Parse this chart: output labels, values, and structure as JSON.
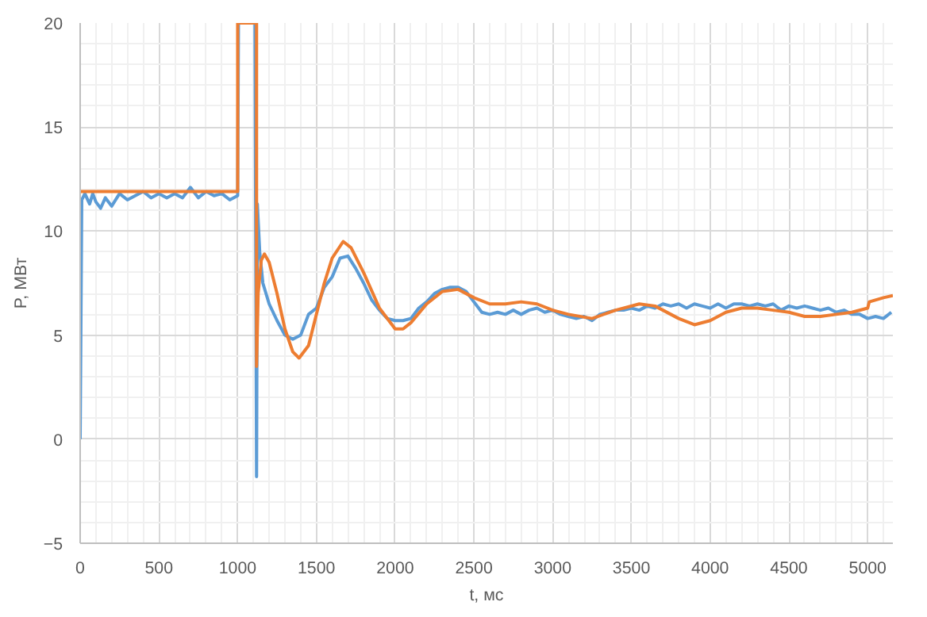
{
  "chart_data": {
    "type": "line",
    "xlabel": "t, мс",
    "ylabel": "P, МВт",
    "xlim": [
      0,
      5160
    ],
    "ylim": [
      -5,
      20
    ],
    "xticks": [
      0,
      500,
      1000,
      1500,
      2000,
      2500,
      3000,
      3500,
      4000,
      4500,
      5000
    ],
    "yticks": [
      -5,
      0,
      5,
      10,
      15,
      20
    ],
    "grid": true,
    "series": [
      {
        "color": "#5b9bd5",
        "x": [
          0,
          10,
          30,
          60,
          80,
          100,
          130,
          160,
          200,
          250,
          300,
          350,
          400,
          450,
          500,
          550,
          600,
          650,
          700,
          750,
          800,
          850,
          900,
          950,
          1000,
          1005,
          1110,
          1120,
          1125,
          1140,
          1160,
          1200,
          1250,
          1300,
          1350,
          1400,
          1450,
          1500,
          1550,
          1600,
          1650,
          1700,
          1750,
          1800,
          1850,
          1900,
          1950,
          2000,
          2050,
          2100,
          2150,
          2200,
          2250,
          2300,
          2350,
          2400,
          2450,
          2500,
          2550,
          2600,
          2650,
          2700,
          2750,
          2800,
          2850,
          2900,
          2950,
          3000,
          3050,
          3100,
          3150,
          3200,
          3250,
          3300,
          3350,
          3400,
          3450,
          3500,
          3550,
          3600,
          3650,
          3700,
          3750,
          3800,
          3850,
          3900,
          3950,
          4000,
          4050,
          4100,
          4150,
          4200,
          4250,
          4300,
          4350,
          4400,
          4450,
          4500,
          4550,
          4600,
          4650,
          4700,
          4750,
          4800,
          4850,
          4900,
          4950,
          5000,
          5050,
          5100,
          5150
        ],
        "values": [
          0,
          11.5,
          11.8,
          11.3,
          11.8,
          11.4,
          11.1,
          11.6,
          11.2,
          11.8,
          11.5,
          11.7,
          11.9,
          11.6,
          11.8,
          11.6,
          11.8,
          11.6,
          12.1,
          11.6,
          11.9,
          11.7,
          11.8,
          11.5,
          11.7,
          20,
          20,
          -1.8,
          11.3,
          9,
          7.5,
          6.5,
          5.7,
          5.0,
          4.8,
          5.0,
          6.0,
          6.3,
          7.3,
          7.8,
          8.7,
          8.8,
          8.2,
          7.5,
          6.7,
          6.2,
          5.8,
          5.7,
          5.7,
          5.8,
          6.3,
          6.6,
          7.0,
          7.2,
          7.3,
          7.3,
          7.1,
          6.6,
          6.1,
          6.0,
          6.1,
          6.0,
          6.2,
          6.0,
          6.2,
          6.3,
          6.1,
          6.2,
          6.0,
          5.9,
          5.8,
          5.9,
          5.7,
          6.0,
          6.1,
          6.2,
          6.2,
          6.3,
          6.2,
          6.4,
          6.3,
          6.5,
          6.4,
          6.5,
          6.3,
          6.5,
          6.4,
          6.3,
          6.5,
          6.3,
          6.5,
          6.5,
          6.4,
          6.5,
          6.4,
          6.5,
          6.2,
          6.4,
          6.3,
          6.4,
          6.3,
          6.2,
          6.3,
          6.1,
          6.2,
          6.0,
          6.0,
          5.8,
          5.9,
          5.8,
          6.1
        ]
      },
      {
        "color": "#ed7d31",
        "x": [
          0,
          1000,
          1000,
          1120,
          1120,
          1130,
          1150,
          1170,
          1200,
          1250,
          1300,
          1350,
          1390,
          1450,
          1500,
          1550,
          1600,
          1670,
          1720,
          1800,
          1900,
          2000,
          2050,
          2100,
          2200,
          2300,
          2400,
          2500,
          2600,
          2700,
          2800,
          2900,
          3000,
          3100,
          3250,
          3400,
          3550,
          3650,
          3800,
          3900,
          4000,
          4100,
          4200,
          4300,
          4400,
          4500,
          4600,
          4700,
          4800,
          4900,
          5000,
          5010,
          5100,
          5160
        ],
        "values": [
          11.9,
          11.9,
          20,
          20,
          3.5,
          7,
          8.6,
          8.9,
          8.5,
          7,
          5.3,
          4.2,
          3.9,
          4.5,
          6.0,
          7.5,
          8.7,
          9.5,
          9.2,
          8.0,
          6.3,
          5.3,
          5.3,
          5.6,
          6.5,
          7.1,
          7.2,
          6.8,
          6.5,
          6.5,
          6.6,
          6.5,
          6.2,
          6.0,
          5.8,
          6.2,
          6.5,
          6.4,
          5.8,
          5.5,
          5.7,
          6.1,
          6.3,
          6.3,
          6.2,
          6.1,
          5.9,
          5.9,
          6.0,
          6.1,
          6.3,
          6.6,
          6.8,
          6.9
        ]
      }
    ]
  }
}
